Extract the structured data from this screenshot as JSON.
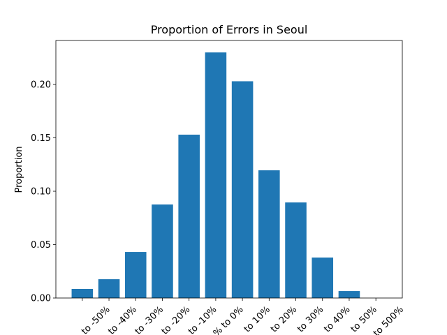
{
  "chart_data": {
    "type": "bar",
    "title": "Proportion of Errors in Seoul",
    "y_label": "Proportion",
    "categories": [
      "to -50%",
      "to -40%",
      "to -30%",
      "to -20%",
      "to -10%",
      "% to 0%",
      "to 10%",
      "to 20%",
      "to 30%",
      "to 40%",
      "to 50%",
      "to 500%"
    ],
    "values": [
      0.0085,
      0.0176,
      0.0431,
      0.0876,
      0.153,
      0.23,
      0.203,
      0.1196,
      0.0895,
      0.0379,
      0.0065,
      0
    ],
    "color": "#1f77b4",
    "ylim": [
      0,
      0.2412
    ],
    "yticks": [
      {
        "value": 0,
        "label": "0.00"
      },
      {
        "value": 0.05,
        "label": "0.05"
      },
      {
        "value": 0.1,
        "label": "0.10"
      },
      {
        "value": 0.15,
        "label": "0.15"
      },
      {
        "value": 0.2,
        "label": "0.20"
      }
    ],
    "grid": false
  }
}
